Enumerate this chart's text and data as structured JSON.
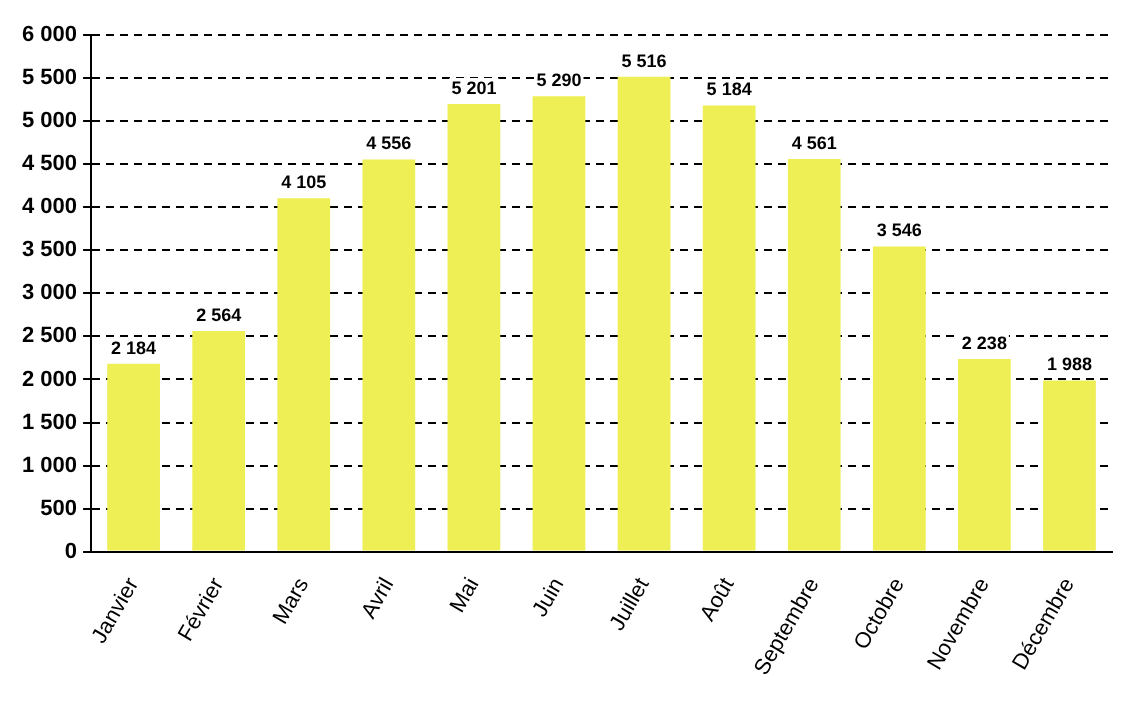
{
  "chart_data": {
    "type": "bar",
    "categories": [
      "Janvier",
      "Février",
      "Mars",
      "Avril",
      "Mai",
      "Juin",
      "Juillet",
      "Août",
      "Septembre",
      "Octobre",
      "Novembre",
      "Décembre"
    ],
    "values": [
      2184,
      2564,
      4105,
      4556,
      5201,
      5290,
      5516,
      5184,
      4561,
      3546,
      2238,
      1988
    ],
    "value_labels": [
      "2 184",
      "2 564",
      "4 105",
      "4 556",
      "5 201",
      "5 290",
      "5 516",
      "5 184",
      "4 561",
      "3 546",
      "2 238",
      "1 988"
    ],
    "color": "#eeee55",
    "ylim": [
      0,
      6000
    ],
    "yticks": [
      {
        "value": 0,
        "label": "0"
      },
      {
        "value": 500,
        "label": "500"
      },
      {
        "value": 1000,
        "label": "1 000"
      },
      {
        "value": 1500,
        "label": "1 500"
      },
      {
        "value": 2000,
        "label": "2 000"
      },
      {
        "value": 2500,
        "label": "2 500"
      },
      {
        "value": 3000,
        "label": "3 000"
      },
      {
        "value": 3500,
        "label": "3 500"
      },
      {
        "value": 4000,
        "label": "4 000"
      },
      {
        "value": 4500,
        "label": "4 500"
      },
      {
        "value": 5000,
        "label": "5 000"
      },
      {
        "value": 5500,
        "label": "5 500"
      },
      {
        "value": 6000,
        "label": "6 000"
      }
    ],
    "grid": "y"
  }
}
